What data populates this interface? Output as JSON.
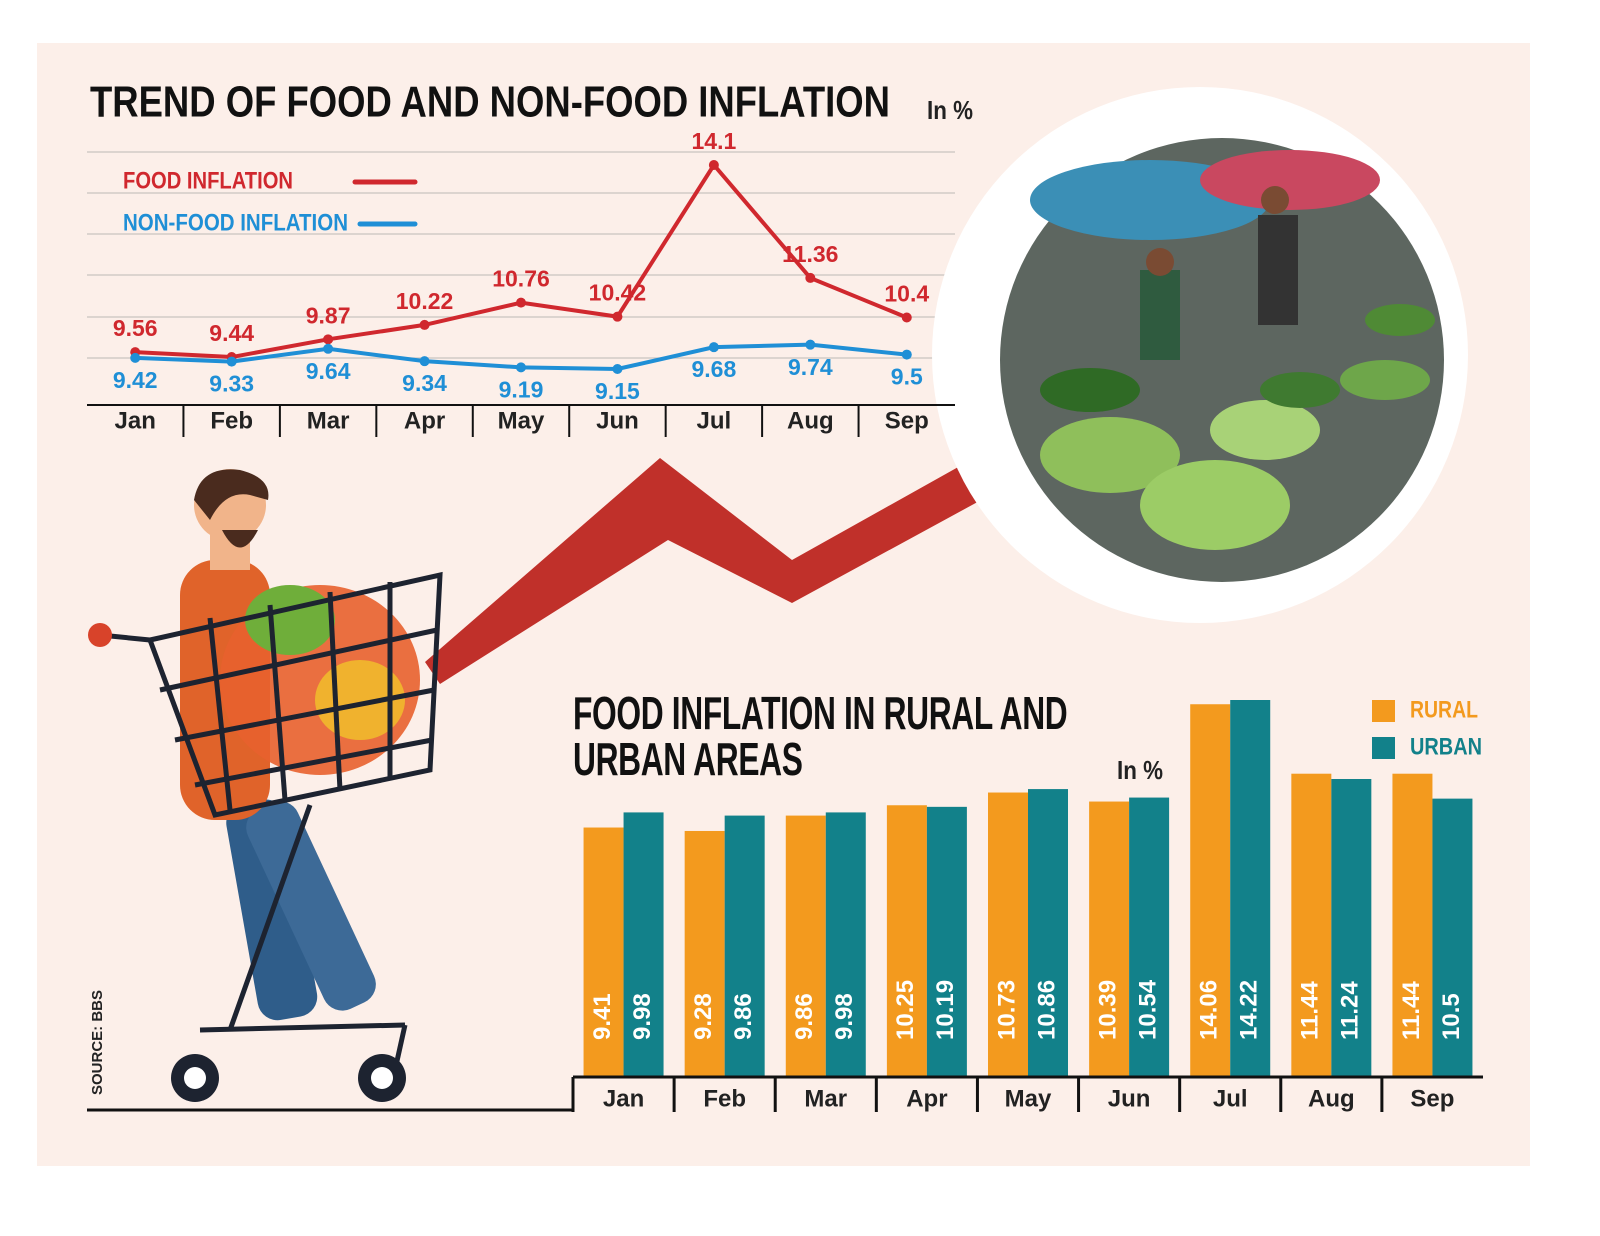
{
  "chart_data": [
    {
      "type": "line",
      "title": "TREND OF FOOD AND NON-FOOD INFLATION",
      "unit": "In %",
      "categories": [
        "Jan",
        "Feb",
        "Mar",
        "Apr",
        "May",
        "Jun",
        "Jul",
        "Aug",
        "Sep"
      ],
      "series": [
        {
          "name": "FOOD INFLATION",
          "color": "#d0282e",
          "values": [
            9.56,
            9.44,
            9.87,
            10.22,
            10.76,
            10.42,
            14.1,
            11.36,
            10.4
          ]
        },
        {
          "name": "NON-FOOD INFLATION",
          "color": "#1f8fd6",
          "values": [
            9.42,
            9.33,
            9.64,
            9.34,
            9.19,
            9.15,
            9.68,
            9.74,
            9.5
          ]
        }
      ]
    },
    {
      "type": "bar",
      "title": "FOOD INFLATION IN RURAL AND URBAN AREAS",
      "unit": "In %",
      "categories": [
        "Jan",
        "Feb",
        "Mar",
        "Apr",
        "May",
        "Jun",
        "Jul",
        "Aug",
        "Sep"
      ],
      "series": [
        {
          "name": "RURAL",
          "color": "#f39a1e",
          "values": [
            9.41,
            9.28,
            9.86,
            10.25,
            10.73,
            10.39,
            14.06,
            11.44,
            11.44
          ]
        },
        {
          "name": "URBAN",
          "color": "#12818a",
          "values": [
            9.98,
            9.86,
            9.98,
            10.19,
            10.86,
            10.54,
            14.22,
            11.24,
            10.5
          ]
        }
      ]
    }
  ],
  "source": "SOURCE: BBS"
}
